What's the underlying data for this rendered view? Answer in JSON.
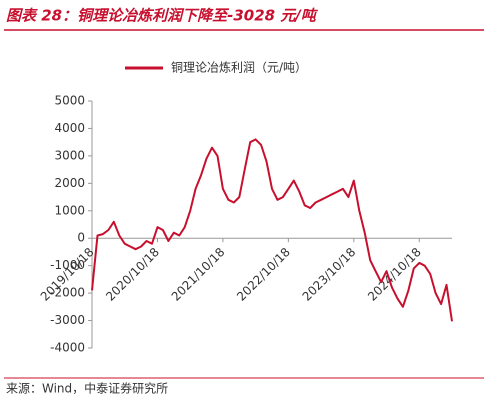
{
  "chart_data": {
    "type": "line",
    "title": "图表 28：铜理论冶炼利润下降至-3028 元/吨",
    "source": "来源：Wind，中泰证券研究所",
    "categories": [
      "2019/10/18",
      null,
      null,
      null,
      null,
      null,
      null,
      null,
      null,
      null,
      null,
      null,
      "2020/10/18",
      null,
      null,
      null,
      null,
      null,
      null,
      null,
      null,
      null,
      null,
      null,
      "2021/10/18",
      null,
      null,
      null,
      null,
      null,
      null,
      null,
      null,
      null,
      null,
      null,
      "2022/10/18",
      null,
      null,
      null,
      null,
      null,
      null,
      null,
      null,
      null,
      null,
      null,
      "2023/10/18",
      null,
      null,
      null,
      null,
      null,
      null,
      null,
      null,
      null,
      null,
      null,
      "2024/10/18",
      null,
      null,
      null,
      null,
      null,
      null
    ],
    "series": [
      {
        "name": "铜理论冶炼利润（元/吨）",
        "color": "#c8102e",
        "values": [
          -1900,
          100,
          150,
          300,
          600,
          100,
          -200,
          -300,
          -400,
          -300,
          -100,
          -200,
          400,
          300,
          -100,
          200,
          100,
          400,
          1000,
          1800,
          2300,
          2900,
          3300,
          3000,
          1800,
          1400,
          1300,
          1500,
          2500,
          3500,
          3600,
          3400,
          2800,
          1800,
          1400,
          1500,
          1800,
          2100,
          1700,
          1200,
          1100,
          1300,
          1400,
          1500,
          1600,
          1700,
          1800,
          1500,
          2100,
          1000,
          200,
          -800,
          -1200,
          -1600,
          -1200,
          -1800,
          -2200,
          -2500,
          -1900,
          -1100,
          -900,
          -1000,
          -1300,
          -2000,
          -2400,
          -1700,
          -3028
        ]
      }
    ],
    "ylim": [
      -4000,
      5000
    ],
    "yticks": [
      5000,
      4000,
      3000,
      2000,
      1000,
      0,
      -1000,
      -2000,
      -3000,
      -4000
    ],
    "legend": "top"
  }
}
